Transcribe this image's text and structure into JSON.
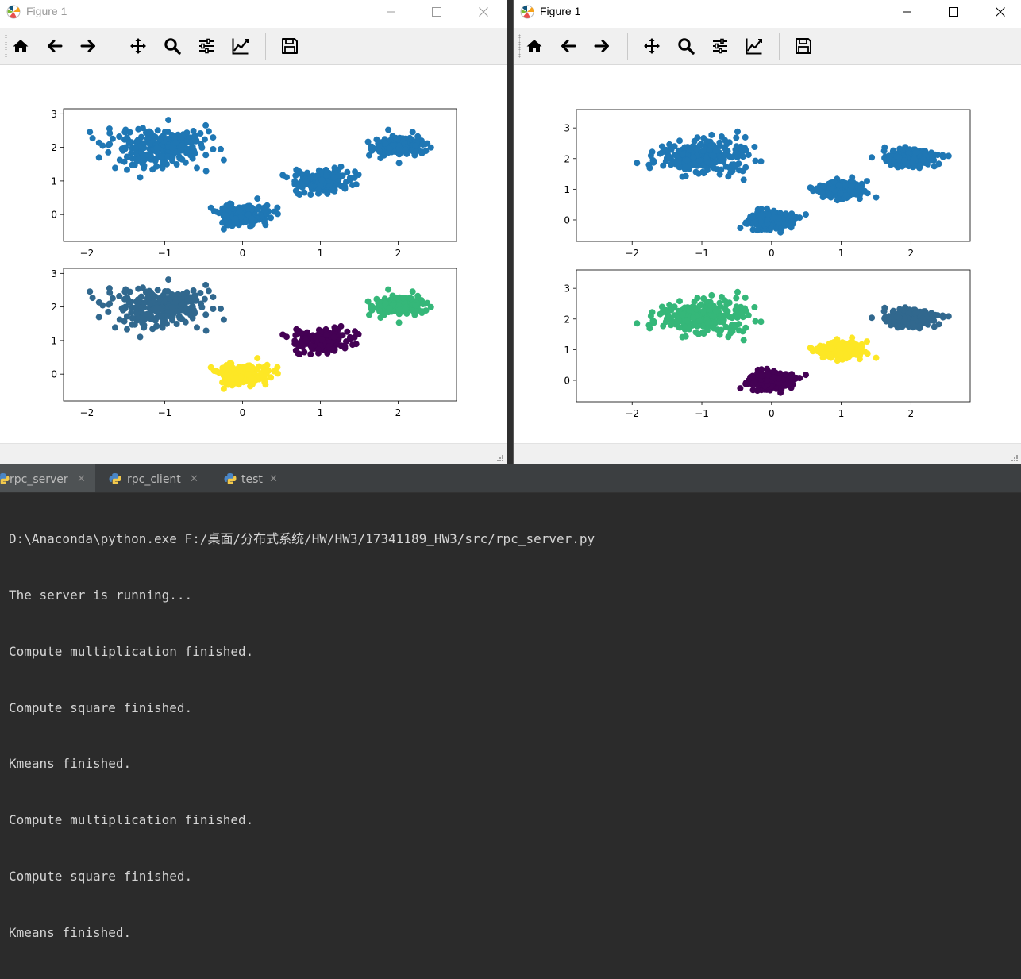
{
  "windows": [
    {
      "title": "Figure 1",
      "toolbar": [
        "home-icon",
        "back-arrow-icon",
        "forward-arrow-icon",
        "pan-icon",
        "zoom-icon",
        "subplots-icon",
        "edit-axes-icon",
        "save-icon"
      ],
      "colors": {
        "default": "#1f77b4"
      }
    },
    {
      "title": "Figure 1",
      "toolbar": [
        "home-icon",
        "back-arrow-icon",
        "forward-arrow-icon",
        "pan-icon",
        "zoom-icon",
        "subplots-icon",
        "edit-axes-icon",
        "save-icon"
      ],
      "colors": {
        "default": "#1f77b4"
      }
    }
  ],
  "chart_data": [
    {
      "id": "left-top",
      "type": "scatter",
      "colored": false,
      "xlim": [
        -2.3,
        2.75
      ],
      "ylim": [
        -0.8,
        3.15
      ],
      "xticks": [
        -2,
        -1,
        0,
        1,
        2
      ],
      "yticks": [
        0,
        1,
        2,
        3
      ],
      "clusters": [
        {
          "center": [
            -1.05,
            2.0
          ],
          "spread": [
            0.33,
            0.28
          ],
          "n": 240,
          "color": "#1f77b4"
        },
        {
          "center": [
            0.0,
            0.0
          ],
          "spread": [
            0.17,
            0.17
          ],
          "n": 190,
          "color": "#1f77b4"
        },
        {
          "center": [
            1.0,
            1.0
          ],
          "spread": [
            0.17,
            0.17
          ],
          "n": 190,
          "color": "#1f77b4"
        },
        {
          "center": [
            2.0,
            2.05
          ],
          "spread": [
            0.17,
            0.14
          ],
          "n": 190,
          "color": "#1f77b4"
        }
      ]
    },
    {
      "id": "left-bottom",
      "type": "scatter",
      "colored": true,
      "xlim": [
        -2.3,
        2.75
      ],
      "ylim": [
        -0.8,
        3.15
      ],
      "xticks": [
        -2,
        -1,
        0,
        1,
        2
      ],
      "yticks": [
        0,
        1,
        2,
        3
      ],
      "clusters": [
        {
          "center": [
            -1.05,
            2.0
          ],
          "spread": [
            0.33,
            0.28
          ],
          "n": 240,
          "color": "#31688e"
        },
        {
          "center": [
            0.0,
            0.0
          ],
          "spread": [
            0.17,
            0.17
          ],
          "n": 190,
          "color": "#fde725"
        },
        {
          "center": [
            1.0,
            1.0
          ],
          "spread": [
            0.17,
            0.17
          ],
          "n": 190,
          "color": "#440154"
        },
        {
          "center": [
            2.0,
            2.05
          ],
          "spread": [
            0.17,
            0.14
          ],
          "n": 190,
          "color": "#35b779"
        }
      ]
    },
    {
      "id": "right-top",
      "type": "scatter",
      "colored": false,
      "xlim": [
        -2.8,
        2.85
      ],
      "ylim": [
        -0.7,
        3.6
      ],
      "xticks": [
        -2,
        -1,
        0,
        1,
        2
      ],
      "yticks": [
        0,
        1,
        2,
        3
      ],
      "clusters": [
        {
          "center": [
            -1.0,
            2.05
          ],
          "spread": [
            0.35,
            0.3
          ],
          "n": 240,
          "color": "#1f77b4"
        },
        {
          "center": [
            0.0,
            0.0
          ],
          "spread": [
            0.17,
            0.15
          ],
          "n": 190,
          "color": "#1f77b4"
        },
        {
          "center": [
            1.0,
            1.0
          ],
          "spread": [
            0.17,
            0.15
          ],
          "n": 190,
          "color": "#1f77b4"
        },
        {
          "center": [
            2.0,
            2.0
          ],
          "spread": [
            0.18,
            0.13
          ],
          "n": 190,
          "color": "#1f77b4"
        }
      ]
    },
    {
      "id": "right-bottom",
      "type": "scatter",
      "colored": true,
      "xlim": [
        -2.8,
        2.85
      ],
      "ylim": [
        -0.7,
        3.6
      ],
      "xticks": [
        -2,
        -1,
        0,
        1,
        2
      ],
      "yticks": [
        0,
        1,
        2,
        3
      ],
      "clusters": [
        {
          "center": [
            -1.0,
            2.05
          ],
          "spread": [
            0.35,
            0.3
          ],
          "n": 240,
          "color": "#35b779"
        },
        {
          "center": [
            0.0,
            0.0
          ],
          "spread": [
            0.17,
            0.15
          ],
          "n": 190,
          "color": "#440154"
        },
        {
          "center": [
            1.0,
            1.0
          ],
          "spread": [
            0.17,
            0.15
          ],
          "n": 190,
          "color": "#fde725"
        },
        {
          "center": [
            2.0,
            2.0
          ],
          "spread": [
            0.18,
            0.13
          ],
          "n": 190,
          "color": "#31688e"
        }
      ]
    }
  ],
  "console": {
    "tabs": [
      {
        "label": "rpc_server",
        "active": true
      },
      {
        "label": "rpc_client",
        "active": false
      },
      {
        "label": "test",
        "active": false
      }
    ],
    "lines": [
      "D:\\Anaconda\\python.exe F:/桌面/分布式系统/HW/HW3/17341189_HW3/src/rpc_server.py",
      "The server is running...",
      "Compute multiplication finished.",
      "Compute square finished.",
      "Kmeans finished.",
      "Compute multiplication finished.",
      "Compute square finished.",
      "Kmeans finished."
    ]
  }
}
